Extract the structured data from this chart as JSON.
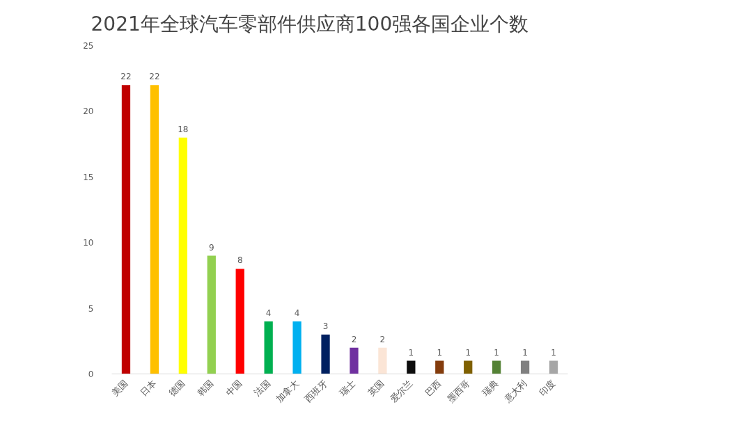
{
  "chart_data": {
    "type": "bar",
    "title": "2021年全球汽车零部件供应商100强各国企业个数",
    "categories": [
      "美国",
      "日本",
      "德国",
      "韩国",
      "中国",
      "法国",
      "加拿大",
      "西班牙",
      "瑞士",
      "英国",
      "爱尔兰",
      "巴西",
      "墨西哥",
      "瑞典",
      "意大利",
      "印度"
    ],
    "values": [
      22,
      22,
      18,
      9,
      8,
      4,
      4,
      3,
      2,
      2,
      1,
      1,
      1,
      1,
      1,
      1
    ],
    "colors": [
      "#c00000",
      "#ffc000",
      "#ffff00",
      "#92d050",
      "#ff0000",
      "#00b050",
      "#00b0f0",
      "#002060",
      "#7030a0",
      "#fbe5d6",
      "#0d0d0d",
      "#843c0c",
      "#7f6000",
      "#548235",
      "#808080",
      "#a6a6a6"
    ],
    "ylim": [
      0,
      25
    ],
    "yticks": [
      0,
      5,
      10,
      15,
      20,
      25
    ],
    "grid": false,
    "data_labels": true
  }
}
